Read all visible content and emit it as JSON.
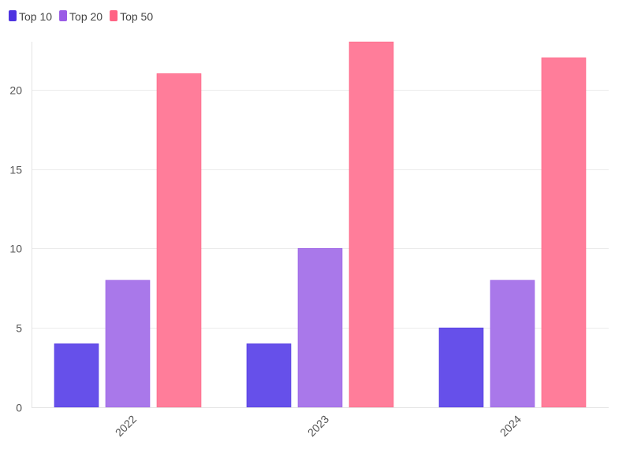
{
  "chart_data": {
    "type": "bar",
    "title": "",
    "xlabel": "",
    "ylabel": "",
    "categories": [
      "2022",
      "2023",
      "2024"
    ],
    "series": [
      {
        "name": "Top 10",
        "values": [
          4,
          4,
          5
        ],
        "color": "#6650EA"
      },
      {
        "name": "Top 20",
        "values": [
          8,
          10,
          8
        ],
        "color": "#A978EA"
      },
      {
        "name": "Top 50",
        "values": [
          21,
          23,
          22
        ],
        "color": "#FF7D9A"
      }
    ],
    "legend_colors": [
      "#4E33E0",
      "#9A5CE6",
      "#FF6384"
    ],
    "yticks": [
      0,
      5,
      10,
      15,
      20
    ],
    "ylim": [
      0,
      24
    ],
    "grid": true,
    "legend_position": "top-left"
  }
}
